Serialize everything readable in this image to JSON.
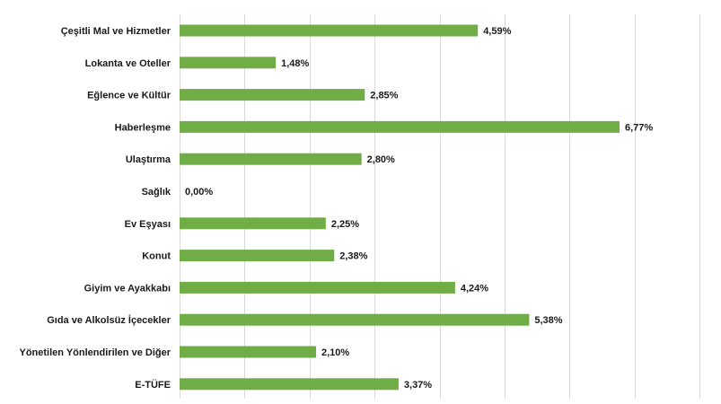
{
  "chart_data": {
    "type": "bar",
    "orientation": "horizontal",
    "categories": [
      "Çeşitli Mal ve Hizmetler",
      "Lokanta ve Oteller",
      "Eğlence ve Kültür",
      "Haberleşme",
      "Ulaştırma",
      "Sağlık",
      "Ev Eşyası",
      "Konut",
      "Giyim ve Ayakkabı",
      "Gıda ve Alkolsüz İçecekler",
      "Yönetilen Yönlendirilen ve Diğer",
      "E-TÜFE"
    ],
    "values": [
      4.59,
      1.48,
      2.85,
      6.77,
      2.8,
      0.0,
      2.25,
      2.38,
      4.24,
      5.38,
      2.1,
      3.37
    ],
    "value_labels": [
      "4,59%",
      "1,48%",
      "2,85%",
      "6,77%",
      "2,80%",
      "0,00%",
      "2,25%",
      "2,38%",
      "4,24%",
      "5,38%",
      "2,10%",
      "3,37%"
    ],
    "xlim": [
      0,
      8
    ],
    "grid": true,
    "bar_color": "#70ad47"
  }
}
